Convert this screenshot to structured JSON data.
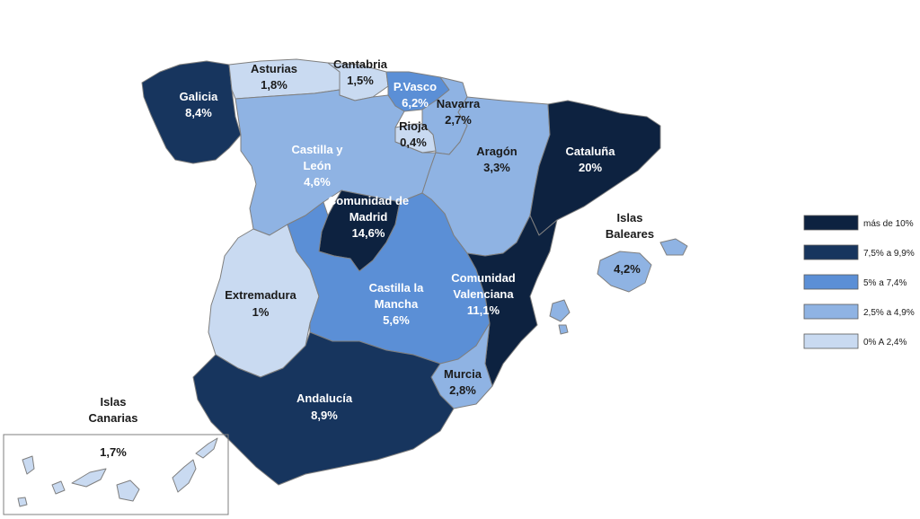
{
  "colors": {
    "c1": "#0d2240",
    "c2": "#17355e",
    "c3": "#5b8fd6",
    "c4": "#8fb3e3",
    "c5": "#c9daf1"
  },
  "regions": {
    "galicia": {
      "name": "Galicia",
      "value": "8,4%"
    },
    "asturias": {
      "name": "Asturias",
      "value": "1,8%"
    },
    "cantabria": {
      "name": "Cantabria",
      "value": "1,5%"
    },
    "pvasco": {
      "name": "P.Vasco",
      "value": "6,2%"
    },
    "navarra": {
      "name": "Navarra",
      "value": "2,7%"
    },
    "rioja": {
      "name": "Rioja",
      "value": "0,4%"
    },
    "aragon": {
      "name": "Aragón",
      "value": "3,3%"
    },
    "cataluna": {
      "name": "Cataluña",
      "value": "20%"
    },
    "cyl": {
      "name_line1": "Castilla y",
      "name_line2": "León",
      "value": "4,6%"
    },
    "madrid": {
      "name_line1": "Comunidad de",
      "name_line2": "Madrid",
      "value": "14,6%"
    },
    "baleares": {
      "name_line1": "Islas",
      "name_line2": "Baleares",
      "value": "4,2%"
    },
    "extremadura": {
      "name": "Extremadura",
      "value": "1%"
    },
    "clm": {
      "name_line1": "Castilla la",
      "name_line2": "Mancha",
      "value": "5,6%"
    },
    "valencia": {
      "name_line1": "Comunidad",
      "name_line2": "Valenciana",
      "value": "11,1%"
    },
    "murcia": {
      "name": "Murcia",
      "value": "2,8%"
    },
    "andalucia": {
      "name": "Andalucía",
      "value": "8,9%"
    },
    "canarias": {
      "name_line1": "Islas",
      "name_line2": "Canarias",
      "value": "1,7%"
    }
  },
  "legend": [
    {
      "label": "más de 10%",
      "color": "#0d2240"
    },
    {
      "label": "7,5% a 9,9%",
      "color": "#17355e"
    },
    {
      "label": "5% a 7,4%",
      "color": "#5b8fd6"
    },
    {
      "label": "2,5% a 4,9%",
      "color": "#8fb3e3"
    },
    {
      "label": "0% A 2,4%",
      "color": "#c9daf1"
    }
  ]
}
